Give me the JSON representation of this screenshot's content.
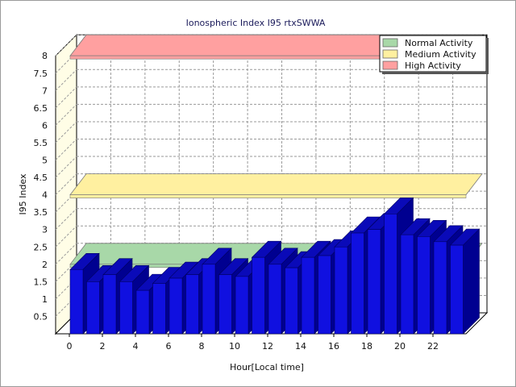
{
  "chart_data": {
    "type": "bar",
    "title": "Ionospheric Index I95 rtxSWWA",
    "xlabel": "Hour[Local time]",
    "ylabel": "I95 Index",
    "ylim": [
      0,
      8
    ],
    "y_ticks": [
      "0.5",
      "1",
      "1.5",
      "2",
      "2.5",
      "3",
      "3.5",
      "4",
      "4.5",
      "5",
      "5.5",
      "6",
      "6.5",
      "7",
      "7.5",
      "8"
    ],
    "x_tick_labels": [
      "0",
      "2",
      "4",
      "6",
      "8",
      "10",
      "12",
      "14",
      "16",
      "18",
      "20",
      "22"
    ],
    "grid": true,
    "legend_position": "top-right",
    "bar_color": "#1010e0",
    "bar_top_color": "#0a0ab8",
    "bar_side_color": "#000090",
    "x": [
      0,
      1,
      2,
      3,
      4,
      5,
      6,
      7,
      8,
      9,
      10,
      11,
      12,
      13,
      14,
      15,
      16,
      17,
      18,
      19,
      20,
      21,
      22,
      23
    ],
    "values": [
      1.85,
      1.5,
      1.7,
      1.5,
      1.25,
      1.45,
      1.6,
      1.7,
      2.0,
      1.7,
      1.65,
      2.2,
      2.0,
      1.9,
      2.2,
      2.25,
      2.5,
      2.9,
      3.0,
      3.45,
      2.85,
      2.8,
      2.65,
      2.55
    ],
    "activity_bands": [
      {
        "name": "Normal Activity",
        "level": 2.0,
        "color": "#a8d8a8"
      },
      {
        "name": "Medium Activity",
        "level": 4.0,
        "color": "#fff0a0"
      },
      {
        "name": "High Activity",
        "level": 8.0,
        "color": "#ffa0a0"
      }
    ]
  }
}
